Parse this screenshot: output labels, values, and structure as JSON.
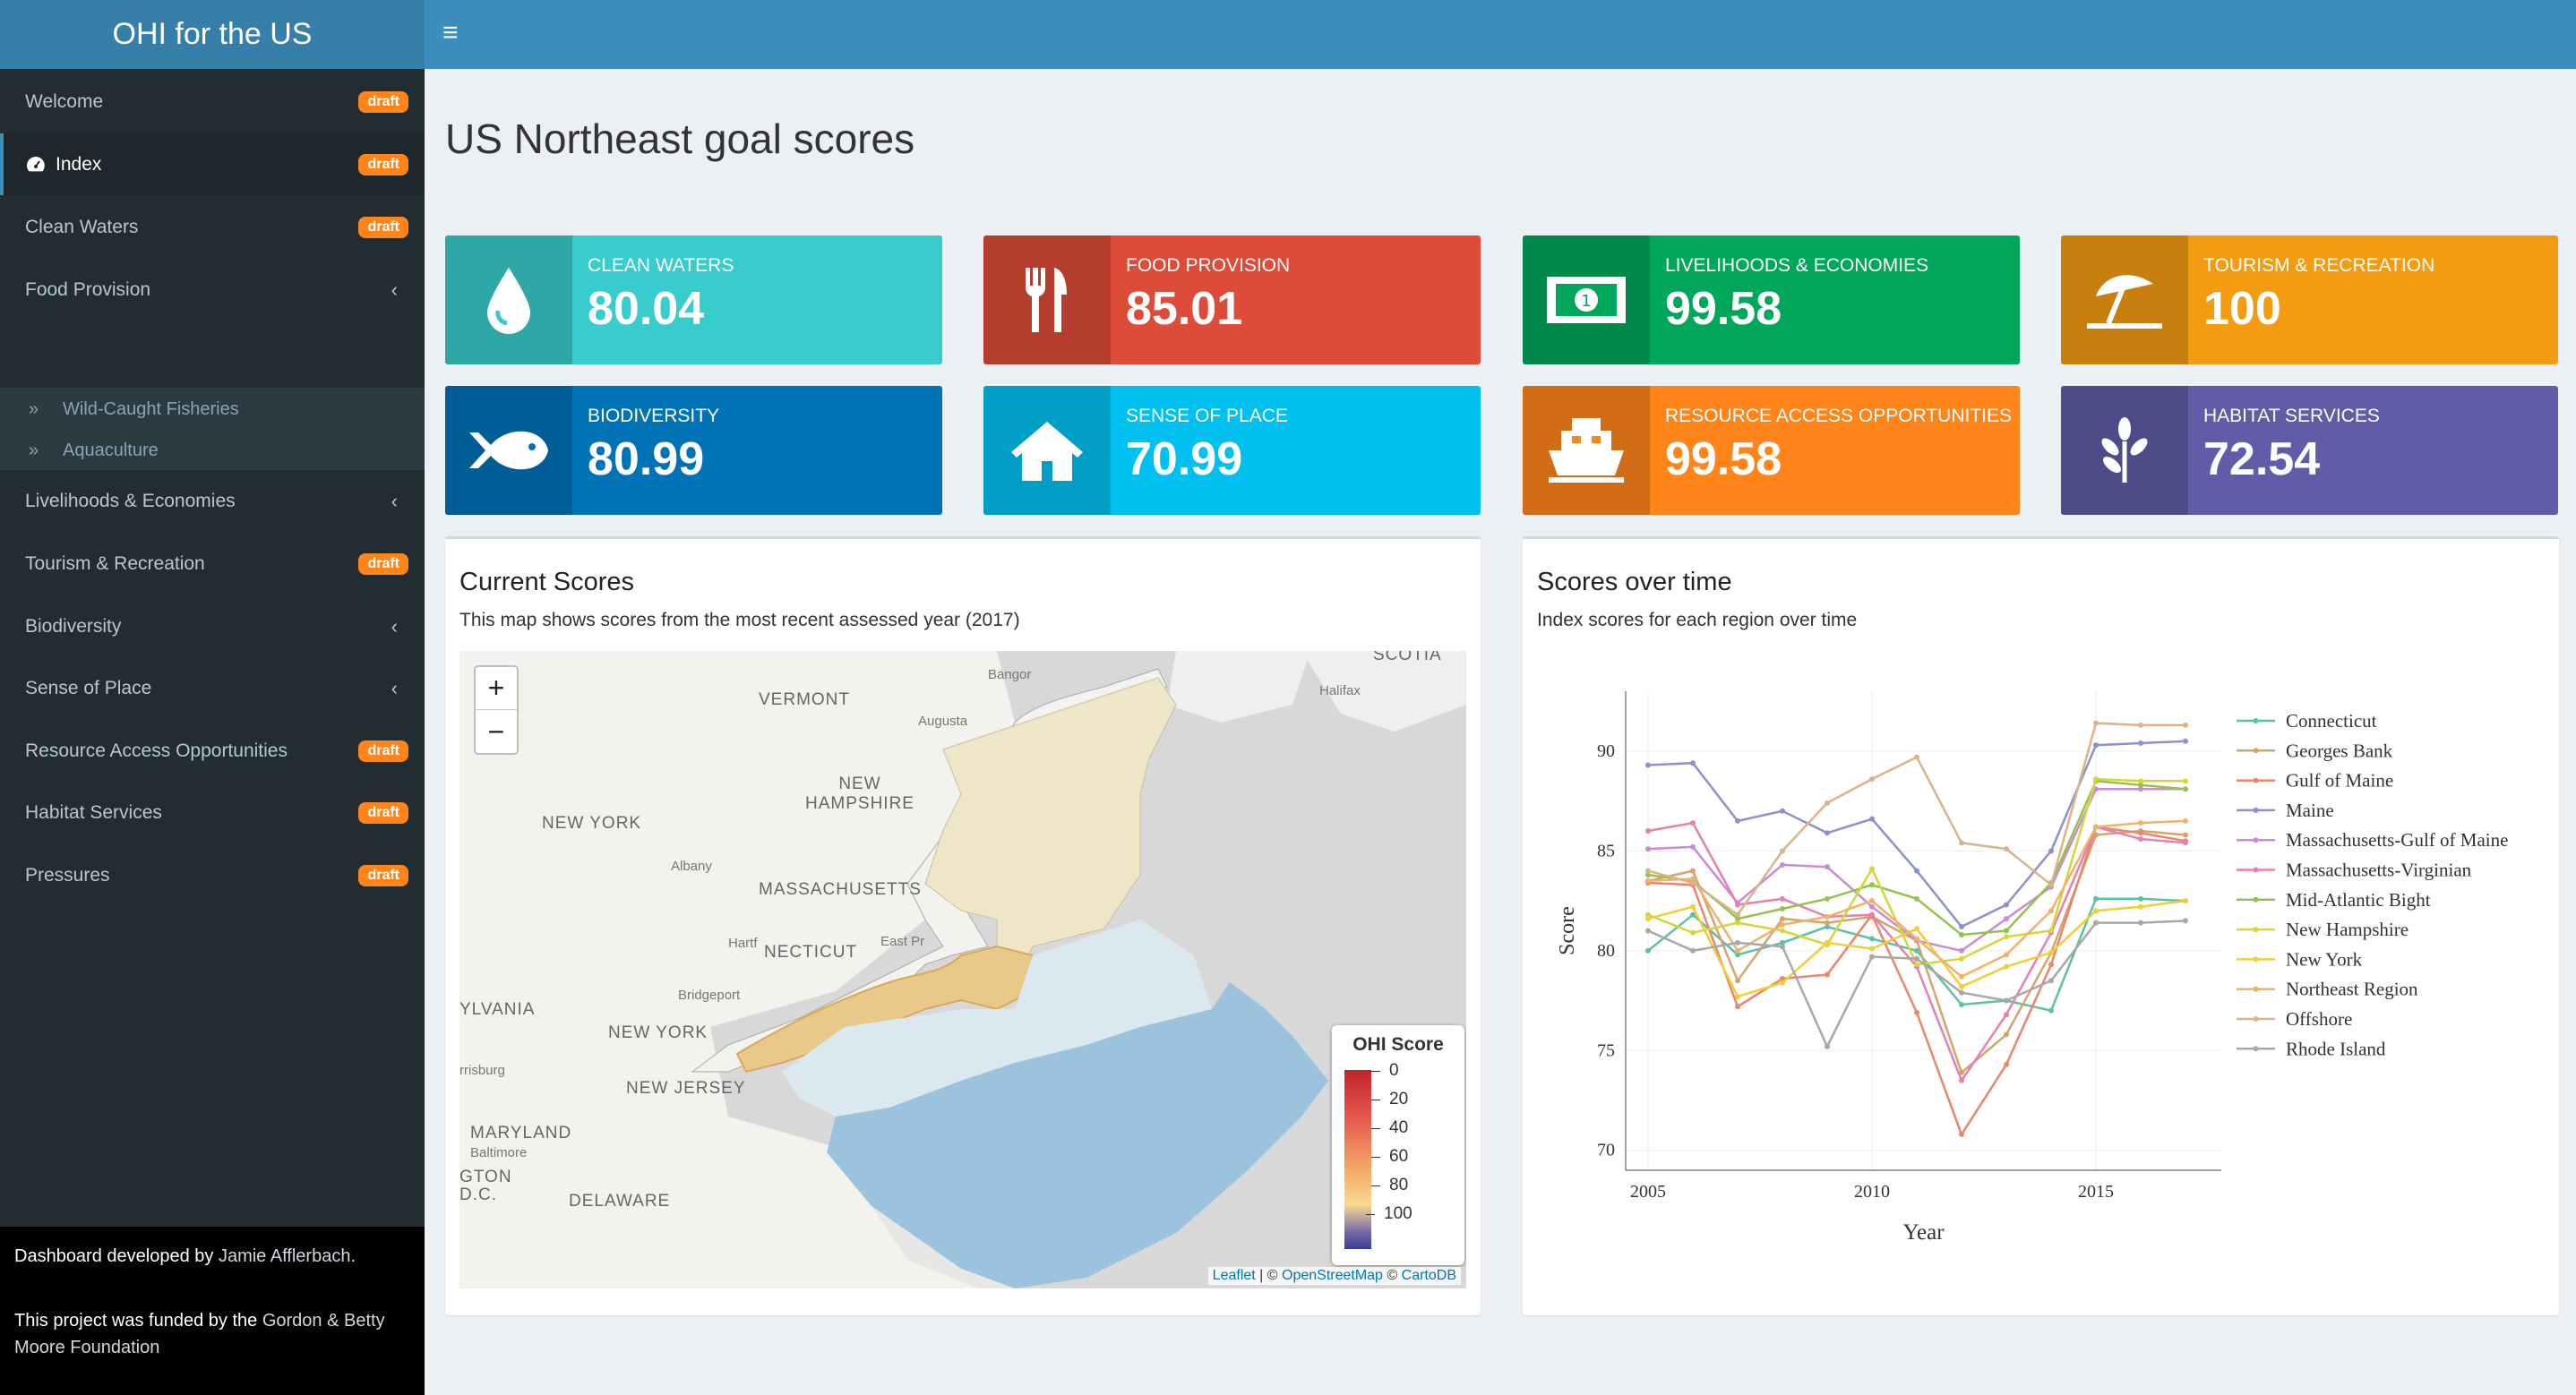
{
  "header": {
    "brand": "OHI for the US",
    "toggle_icon": "≡"
  },
  "sidebar": {
    "items": [
      {
        "label": "Welcome",
        "badge": "draft"
      },
      {
        "label": "Index",
        "badge": "draft"
      },
      {
        "label": "Clean Waters",
        "badge": "draft"
      },
      {
        "label": "Food Provision",
        "chevron": "‹"
      },
      {
        "label": "Livelihoods & Economies",
        "chevron": "‹"
      },
      {
        "label": "Tourism & Recreation",
        "badge": "draft"
      },
      {
        "label": "Biodiversity",
        "chevron": "‹"
      },
      {
        "label": "Sense of Place",
        "chevron": "‹"
      },
      {
        "label": "Resource Access Opportunities",
        "badge": "draft"
      },
      {
        "label": "Habitat Services",
        "badge": "draft"
      },
      {
        "label": "Pressures",
        "badge": "draft"
      }
    ],
    "subitems": [
      {
        "label": "Wild-Caught Fisheries"
      },
      {
        "label": "Aquaculture"
      }
    ],
    "footer": {
      "line1_prefix": "Dashboard developed by",
      "line1_link": "Jamie Afflerbach.",
      "line2_prefix": "This project was funded by the",
      "line2_link": "Gordon & Betty Moore Foundation"
    }
  },
  "page": {
    "title": "US Northeast goal scores"
  },
  "value_boxes": [
    {
      "caption": "CLEAN WATERS",
      "value": "80.04",
      "color": "#39cccc",
      "icon": "tint-icon"
    },
    {
      "caption": "FOOD PROVISION",
      "value": "85.01",
      "color": "#dd4b39",
      "icon": "cutlery-icon"
    },
    {
      "caption": "LIVELIHOODS & ECONOMIES",
      "value": "99.58",
      "color": "#00a65a",
      "icon": "money-icon"
    },
    {
      "caption": "TOURISM & RECREATION",
      "value": "100",
      "color": "#f39c12",
      "icon": "beach-umbrella-icon"
    },
    {
      "caption": "BIODIVERSITY",
      "value": "80.99",
      "color": "#0073b7",
      "icon": "fish-icon"
    },
    {
      "caption": "SENSE OF PLACE",
      "value": "70.99",
      "color": "#00c0ef",
      "icon": "home-icon"
    },
    {
      "caption": "RESOURCE ACCESS OPPORTUNITIES",
      "value": "99.58",
      "color": "#ff851b",
      "icon": "ship-icon"
    },
    {
      "caption": "HABITAT SERVICES",
      "value": "72.54",
      "color": "#605ca8",
      "icon": "leaf-icon"
    }
  ],
  "map_panel": {
    "title": "Current Scores",
    "subtitle": "This map shows scores from the most recent assessed year (2017)",
    "zoom_in": "+",
    "zoom_out": "−",
    "labels": {
      "scotia": "SCOTIA",
      "vermont": "VERMONT",
      "bangor": "Bangor",
      "augusta": "Augusta",
      "halifax": "Halifax",
      "new_hampshire": "NEW\nHAMPSHIRE",
      "new_york_state": "NEW YORK",
      "albany": "Albany",
      "massachusetts": "MASSACHUSETTS",
      "hartford": "Hartf",
      "connecticut": "NECTICUT",
      "east_pr": "East Pr",
      "bridgeport": "Bridgeport",
      "pennsylvania": "YLVANIA",
      "new_york_city": "NEW YORK",
      "harrisburg": "rrisburg",
      "new_jersey": "NEW JERSEY",
      "maryland": "MARYLAND",
      "baltimore": "Baltimore",
      "washington": "GTON\nD.C.",
      "delaware": "DELAWARE"
    },
    "legend": {
      "title": "OHI Score",
      "ticks": [
        "0",
        "20",
        "40",
        "60",
        "80",
        "100"
      ]
    },
    "attribution": {
      "leaflet": "Leaflet",
      "sep": " | © ",
      "osm": "OpenStreetMap",
      "sep2": " © ",
      "carto": "CartoDB"
    }
  },
  "chart_panel": {
    "title": "Scores over time",
    "subtitle": "Index scores for each region over time"
  },
  "chart_data": {
    "type": "line",
    "xlabel": "Year",
    "ylabel": "Score",
    "xlim": [
      2004.5,
      2017.8
    ],
    "ylim": [
      69,
      93
    ],
    "xticks": [
      2005,
      2010,
      2015
    ],
    "yticks": [
      70,
      75,
      80,
      85,
      90
    ],
    "x": [
      2005,
      2006,
      2007,
      2008,
      2009,
      2010,
      2011,
      2012,
      2013,
      2014,
      2015,
      2016,
      2017
    ],
    "legend_position": "right",
    "series": [
      {
        "name": "Connecticut",
        "color": "#5bc0a8",
        "values": [
          80.0,
          81.8,
          79.8,
          80.4,
          81.2,
          80.6,
          80.0,
          77.3,
          77.5,
          77.0,
          82.6,
          82.6,
          82.5
        ]
      },
      {
        "name": "Georges Bank",
        "color": "#d4a56a",
        "values": [
          83.5,
          84.0,
          78.5,
          81.6,
          81.4,
          81.7,
          80.5,
          73.9,
          75.8,
          79.9,
          85.8,
          86.0,
          85.8
        ]
      },
      {
        "name": "Gulf of Maine",
        "color": "#e8876a",
        "values": [
          83.4,
          83.3,
          77.2,
          78.6,
          78.8,
          81.8,
          76.9,
          70.8,
          74.3,
          79.3,
          86.2,
          85.9,
          85.5
        ]
      },
      {
        "name": "Maine",
        "color": "#8e8fd0",
        "values": [
          89.3,
          89.4,
          86.5,
          87.0,
          85.9,
          86.6,
          84.0,
          81.2,
          82.3,
          85.0,
          90.3,
          90.4,
          90.5
        ]
      },
      {
        "name": "Massachusetts-Gulf of Maine",
        "color": "#c98ad8",
        "values": [
          85.1,
          85.2,
          82.4,
          84.3,
          84.2,
          82.2,
          80.5,
          80.0,
          81.6,
          83.2,
          88.1,
          88.1,
          88.1
        ]
      },
      {
        "name": "Massachusetts-Virginian",
        "color": "#e87fb0",
        "values": [
          86.0,
          86.4,
          82.3,
          82.6,
          81.7,
          81.8,
          79.2,
          73.5,
          76.8,
          80.9,
          86.2,
          85.6,
          85.4
        ]
      },
      {
        "name": "Mid-Atlantic Bight",
        "color": "#96c24c",
        "values": [
          83.8,
          83.5,
          81.6,
          82.1,
          82.6,
          83.3,
          82.6,
          80.8,
          81.0,
          83.4,
          88.5,
          88.3,
          88.1
        ]
      },
      {
        "name": "New Hampshire",
        "color": "#d6d63a",
        "values": [
          81.8,
          80.9,
          81.4,
          81.0,
          80.3,
          84.1,
          79.3,
          79.6,
          80.7,
          81.0,
          88.6,
          88.5,
          88.5
        ]
      },
      {
        "name": "New York",
        "color": "#f2cd3a",
        "values": [
          81.6,
          82.2,
          77.7,
          78.4,
          80.4,
          80.1,
          81.1,
          78.2,
          79.2,
          79.9,
          82.0,
          82.2,
          82.5
        ]
      },
      {
        "name": "Northeast Region",
        "color": "#f0b26a",
        "values": [
          83.5,
          83.6,
          80.0,
          81.3,
          81.7,
          82.5,
          80.6,
          78.7,
          79.8,
          82.0,
          86.2,
          86.4,
          86.5
        ]
      },
      {
        "name": "Offshore",
        "color": "#d8b48a",
        "values": [
          84.0,
          83.4,
          81.8,
          85.0,
          87.4,
          88.6,
          89.7,
          85.4,
          85.1,
          83.3,
          91.4,
          91.3,
          91.3
        ]
      },
      {
        "name": "Rhode Island",
        "color": "#a8a8a8",
        "values": [
          81.0,
          80.0,
          80.4,
          80.2,
          75.2,
          79.7,
          79.6,
          77.9,
          77.5,
          78.5,
          81.4,
          81.4,
          81.5
        ]
      }
    ]
  }
}
